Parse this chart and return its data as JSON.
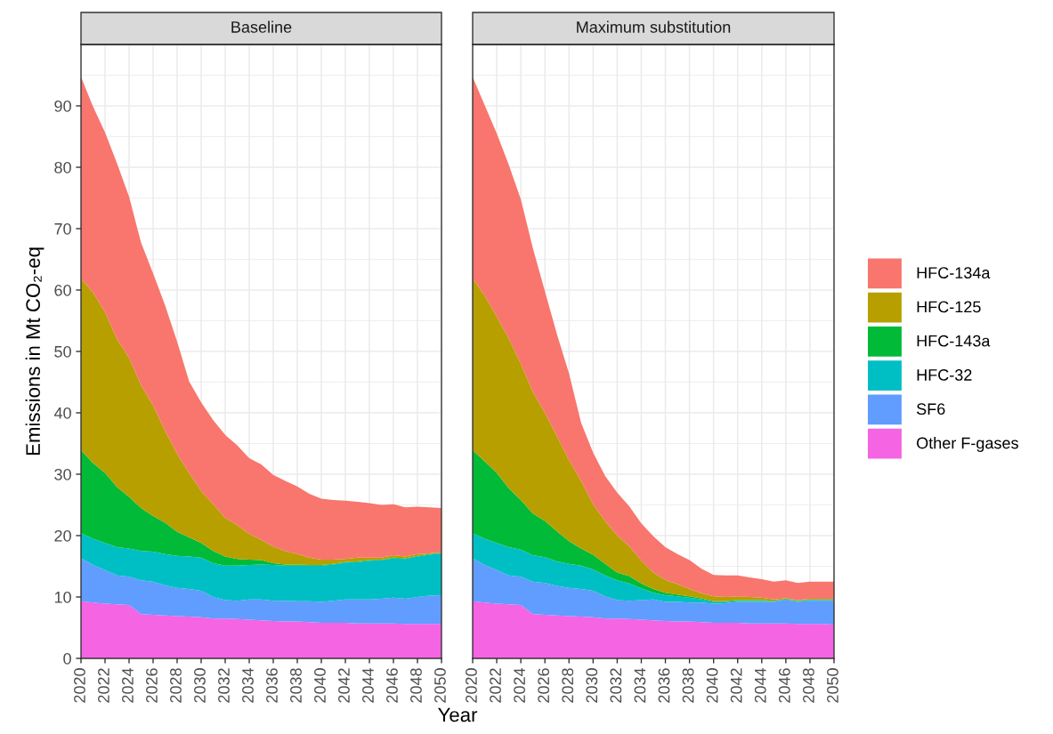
{
  "chart_data": [
    {
      "type": "area",
      "title": "Baseline",
      "xlabel": "Year",
      "ylabel": "Emissions in Mt CO₂-eq",
      "stacked": true,
      "grid": true,
      "legend": "right",
      "x": [
        2020,
        2021,
        2022,
        2023,
        2024,
        2025,
        2026,
        2027,
        2028,
        2029,
        2030,
        2031,
        2032,
        2033,
        2034,
        2035,
        2036,
        2037,
        2038,
        2039,
        2040,
        2041,
        2042,
        2043,
        2044,
        2045,
        2046,
        2047,
        2048,
        2049,
        2050
      ],
      "xlim": [
        2020,
        2050
      ],
      "ylim": [
        0,
        100
      ],
      "xticks": [
        2020,
        2022,
        2024,
        2026,
        2028,
        2030,
        2032,
        2034,
        2036,
        2038,
        2040,
        2042,
        2044,
        2046,
        2048,
        2050
      ],
      "yticks": [
        0,
        10,
        20,
        30,
        40,
        50,
        60,
        70,
        80,
        90
      ],
      "series": [
        {
          "name": "Other F-gases",
          "color": "#f564e3",
          "values": [
            9.3,
            9.1,
            8.9,
            8.8,
            8.7,
            7.2,
            7.1,
            7.0,
            6.9,
            6.8,
            6.7,
            6.5,
            6.5,
            6.4,
            6.3,
            6.2,
            6.1,
            6.0,
            6.0,
            5.9,
            5.8,
            5.8,
            5.8,
            5.7,
            5.7,
            5.7,
            5.7,
            5.6,
            5.6,
            5.6,
            5.6
          ]
        },
        {
          "name": "SF6",
          "color": "#619cff",
          "values": [
            7.0,
            6.1,
            5.5,
            4.7,
            4.6,
            5.5,
            5.4,
            4.9,
            4.6,
            4.5,
            4.3,
            3.5,
            3.0,
            3.0,
            3.3,
            3.4,
            3.3,
            3.4,
            3.3,
            3.4,
            3.4,
            3.6,
            3.8,
            3.9,
            3.9,
            4.0,
            4.2,
            4.1,
            4.4,
            4.6,
            4.7
          ]
        },
        {
          "name": "HFC-32",
          "color": "#00bfc4",
          "values": [
            4.1,
            4.3,
            4.4,
            4.6,
            4.6,
            4.8,
            4.9,
            5.1,
            5.2,
            5.3,
            5.4,
            5.5,
            5.6,
            5.7,
            5.6,
            5.7,
            5.8,
            5.7,
            5.8,
            5.8,
            5.9,
            5.9,
            6.0,
            6.1,
            6.3,
            6.3,
            6.4,
            6.5,
            6.6,
            6.7,
            6.8
          ]
        },
        {
          "name": "HFC-143a",
          "color": "#00ba38",
          "values": [
            13.5,
            12.3,
            11.4,
            9.8,
            8.4,
            7.0,
            5.8,
            5.1,
            3.9,
            3.1,
            2.4,
            2.0,
            1.5,
            1.1,
            0.9,
            0.7,
            0.3,
            0.2,
            0.2,
            0.1,
            0.1,
            0.1,
            0.1,
            0.1,
            0.1,
            0.1,
            0.1,
            0.1,
            0.1,
            0.1,
            0.1
          ]
        },
        {
          "name": "HFC-125",
          "color": "#b79f00",
          "values": [
            28.0,
            27.8,
            26.2,
            24.1,
            22.7,
            20.0,
            18.0,
            15.0,
            12.7,
            10.5,
            8.5,
            7.6,
            6.3,
            5.5,
            4.2,
            3.3,
            2.7,
            2.2,
            1.7,
            1.2,
            0.9,
            0.7,
            0.5,
            0.6,
            0.4,
            0.3,
            0.4,
            0.3,
            0.3,
            0.1,
            0.1
          ]
        },
        {
          "name": "HFC-134a",
          "color": "#f8766d",
          "values": [
            32.8,
            30.3,
            29.3,
            28.6,
            26.2,
            23.2,
            21.5,
            20.4,
            18.3,
            14.9,
            14.4,
            13.7,
            13.5,
            13.0,
            12.3,
            12.3,
            11.7,
            11.4,
            11.0,
            10.4,
            9.9,
            9.7,
            9.5,
            9.1,
            8.9,
            8.6,
            8.3,
            8.0,
            7.7,
            7.5,
            7.2
          ]
        }
      ]
    },
    {
      "type": "area",
      "title": "Maximum substitution",
      "stacked": true,
      "grid": true,
      "tick_labels": "x",
      "x": [
        2020,
        2021,
        2022,
        2023,
        2024,
        2025,
        2026,
        2027,
        2028,
        2029,
        2030,
        2031,
        2032,
        2033,
        2034,
        2035,
        2036,
        2037,
        2038,
        2039,
        2040,
        2041,
        2042,
        2043,
        2044,
        2045,
        2046,
        2047,
        2048,
        2049,
        2050
      ],
      "xlim": [
        2020,
        2050
      ],
      "ylim": [
        0,
        100
      ],
      "xticks": [
        2020,
        2022,
        2024,
        2026,
        2028,
        2030,
        2032,
        2034,
        2036,
        2038,
        2040,
        2042,
        2044,
        2046,
        2048,
        2050
      ],
      "yticks": [
        0,
        10,
        20,
        30,
        40,
        50,
        60,
        70,
        80,
        90
      ],
      "series": [
        {
          "name": "Other F-gases",
          "color": "#f564e3",
          "values": [
            9.3,
            9.1,
            8.9,
            8.8,
            8.7,
            7.2,
            7.1,
            7.0,
            6.9,
            6.8,
            6.7,
            6.5,
            6.5,
            6.4,
            6.3,
            6.2,
            6.1,
            6.0,
            6.0,
            5.9,
            5.8,
            5.8,
            5.8,
            5.7,
            5.7,
            5.7,
            5.7,
            5.6,
            5.6,
            5.6,
            5.5
          ]
        },
        {
          "name": "SF6",
          "color": "#619cff",
          "values": [
            7.0,
            6.1,
            5.5,
            4.7,
            4.6,
            5.3,
            5.2,
            4.8,
            4.6,
            4.5,
            4.3,
            3.6,
            3.0,
            3.0,
            3.2,
            3.4,
            3.1,
            3.2,
            3.1,
            3.2,
            3.1,
            3.2,
            3.4,
            3.5,
            3.5,
            3.5,
            3.8,
            3.6,
            3.8,
            3.8,
            3.9
          ]
        },
        {
          "name": "HFC-32",
          "color": "#00bfc4",
          "values": [
            4.1,
            4.3,
            4.4,
            4.6,
            4.4,
            4.3,
            4.2,
            4.0,
            3.9,
            3.8,
            3.5,
            3.4,
            3.2,
            2.8,
            1.9,
            1.1,
            1.1,
            0.9,
            0.8,
            0.5,
            0.3,
            0.2,
            0.2,
            0.2,
            0.2,
            0.1,
            0.1,
            0.1,
            0.1,
            0.1,
            0.1
          ]
        },
        {
          "name": "HFC-143a",
          "color": "#00ba38",
          "values": [
            13.5,
            12.6,
            11.4,
            9.6,
            8.1,
            6.8,
            5.9,
            4.9,
            3.7,
            2.8,
            2.4,
            1.9,
            1.3,
            1.2,
            0.8,
            0.6,
            0.4,
            0.3,
            0.2,
            0.2,
            0.1,
            0.1,
            0.1,
            0.1,
            0.1,
            0.1,
            0.1,
            0.1,
            0.1,
            0.1,
            0.1
          ]
        },
        {
          "name": "HFC-125",
          "color": "#b79f00",
          "values": [
            28.0,
            27.0,
            25.5,
            24.4,
            22.2,
            19.8,
            17.6,
            15.5,
            13.2,
            11.0,
            8.2,
            7.0,
            6.0,
            4.9,
            3.7,
            2.7,
            2.1,
            1.7,
            1.2,
            0.8,
            0.8,
            0.7,
            0.6,
            0.5,
            0.4,
            0.2,
            0.1,
            0.1,
            0.1,
            0.1,
            0.1
          ]
        },
        {
          "name": "HFC-134a",
          "color": "#f8766d",
          "values": [
            32.8,
            31.0,
            29.8,
            28.3,
            26.8,
            23.4,
            19.8,
            16.6,
            14.1,
            9.5,
            8.4,
            7.3,
            7.0,
            6.5,
            6.1,
            5.9,
            5.3,
            4.9,
            4.7,
            4.0,
            3.5,
            3.5,
            3.4,
            3.2,
            3.0,
            2.9,
            2.9,
            2.8,
            2.8,
            2.8,
            2.8
          ]
        }
      ]
    }
  ]
}
